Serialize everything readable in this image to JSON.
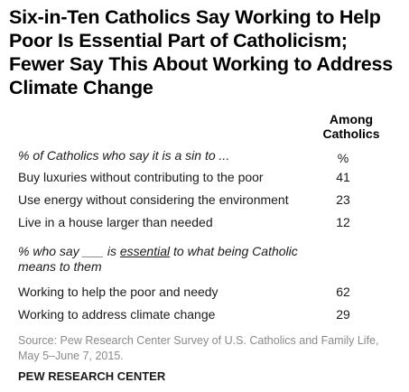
{
  "chart_data": {
    "type": "table",
    "title": "Six-in-Ten Catholics Say Working to Help Poor Is Essential Part of Catholicism; Fewer Say This About Working to Address Climate Change",
    "column_header": "Among Catholics",
    "unit": "%",
    "sections": [
      {
        "heading": "% of Catholics who say it is a sin to ...",
        "rows": [
          {
            "label": "Buy luxuries without contributing to the poor",
            "value": 41
          },
          {
            "label": "Use energy without considering the environment",
            "value": 23
          },
          {
            "label": "Live in a house larger than needed",
            "value": 12
          }
        ]
      },
      {
        "heading_parts": [
          "% who say ___ is ",
          "essential",
          " to what being Catholic means to them"
        ],
        "rows": [
          {
            "label": "Working to help the poor and needy",
            "value": 62
          },
          {
            "label": "Working to address climate change",
            "value": 29
          }
        ]
      }
    ],
    "source": "Source: Pew Research Center Survey of U.S. Catholics and Family Life, May 5–June 7, 2015.",
    "organization": "PEW RESEARCH CENTER"
  }
}
